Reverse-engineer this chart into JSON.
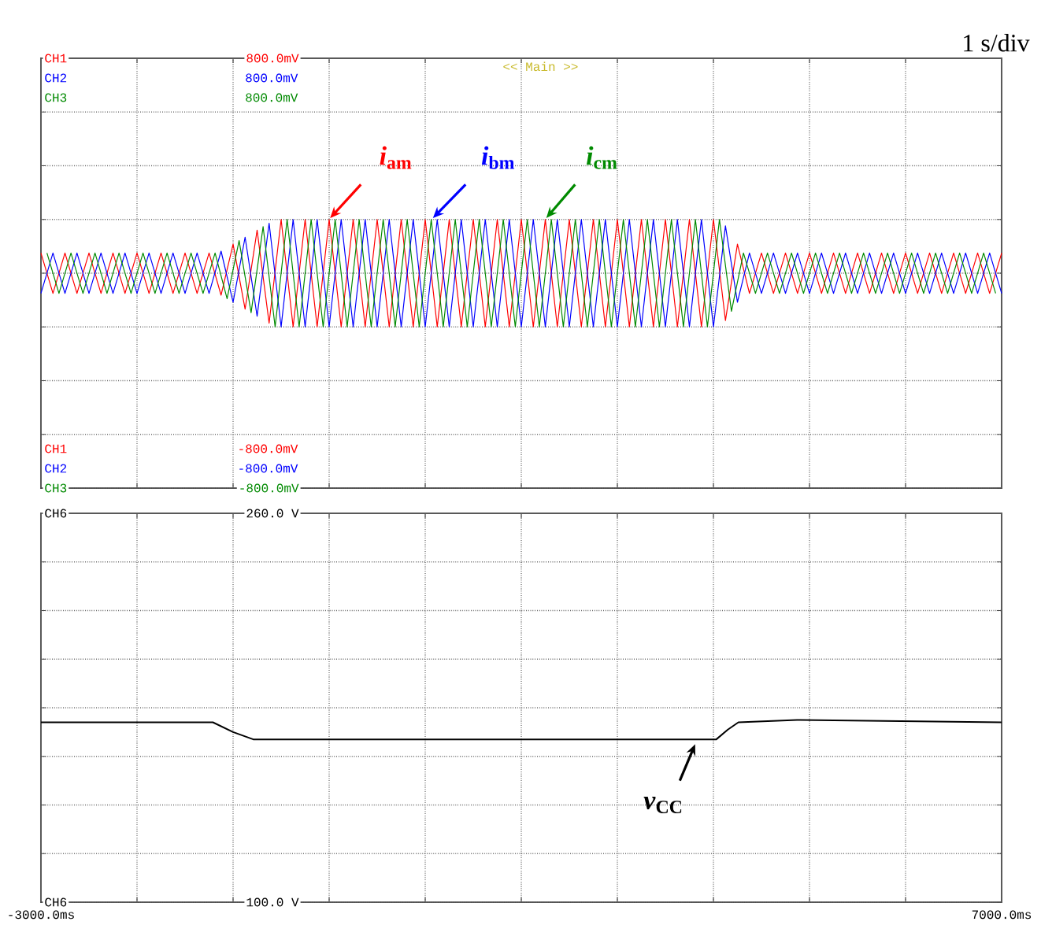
{
  "chart_data": [
    {
      "type": "line",
      "x": [
        -3000,
        -2875,
        -2750,
        -2625,
        -2500,
        -2375,
        -2250,
        -2125,
        -2000,
        -1875,
        -1750,
        -1625,
        -1500,
        -1375,
        -1250,
        -1125,
        -1000,
        -875,
        -750,
        -625,
        -500,
        -375,
        -250,
        -125,
        0,
        125,
        250,
        375,
        500,
        625,
        750,
        875,
        1000,
        1125,
        1250,
        1375,
        1500,
        1625,
        1750,
        1875,
        2000,
        2125,
        2250,
        2375,
        2500,
        2625,
        2750,
        2875,
        3000,
        3125,
        3250,
        3375,
        3500,
        3625,
        3750,
        3875,
        4000,
        4125,
        4250,
        4375,
        4500,
        4625,
        4750,
        4875,
        5000,
        5125,
        5250,
        5375,
        5500,
        5625,
        5750,
        5875,
        6000,
        6125,
        6250,
        6375,
        6500,
        6625,
        6750,
        6875,
        7000
      ],
      "series": [
        {
          "name": "*i*$_{am}$",
          "color": "#ff0000",
          "values": [
            75,
            -75,
            75,
            -75,
            75,
            -75,
            75,
            -75,
            75,
            -75,
            75,
            -75,
            75,
            -75,
            75,
            -82,
            108,
            -134,
            160,
            -186,
            200,
            -200,
            200,
            -200,
            200,
            -200,
            200,
            -200,
            200,
            -200,
            200,
            -200,
            200,
            -200,
            200,
            -200,
            200,
            -200,
            200,
            -200,
            200,
            -200,
            200,
            -200,
            200,
            -200,
            200,
            -200,
            200,
            -200,
            200,
            -200,
            200,
            -200,
            200,
            -200,
            200,
            -176,
            108,
            -75,
            75,
            -75,
            75,
            -75,
            75,
            -75,
            75,
            -75,
            75,
            -75,
            75,
            -75,
            75,
            -75,
            75,
            -75,
            75,
            -75,
            75,
            -75,
            75
          ]
        },
        {
          "name": "*i*$_{bm}$",
          "color": "#0000ff",
          "values": [
            -75,
            75,
            -75,
            75,
            -75,
            75,
            -75,
            75,
            -75,
            75,
            -75,
            75,
            -75,
            75,
            -75,
            82,
            -108,
            134,
            -160,
            186,
            -200,
            200,
            -200,
            200,
            -200,
            200,
            -200,
            200,
            -200,
            200,
            -200,
            200,
            -200,
            200,
            -200,
            200,
            -200,
            200,
            -200,
            200,
            -200,
            200,
            -200,
            200,
            -200,
            200,
            -200,
            200,
            -200,
            200,
            -200,
            200,
            -200,
            200,
            -200,
            200,
            -200,
            176,
            -108,
            75,
            -75,
            75,
            -75,
            75,
            -75,
            75,
            -75,
            75,
            -75,
            75,
            -75,
            75,
            -75,
            75,
            -75,
            75,
            -75,
            75,
            -75,
            75,
            -75
          ]
        },
        {
          "name": "*i*$_{cm}$",
          "color": "#008a00",
          "x": [
            -2937.5,
            -2812.5,
            -2687.5,
            -2562.5,
            -2437.5,
            -2312.5,
            -2187.5,
            -2062.5,
            -1937.5,
            -1812.5,
            -1687.5,
            -1562.5,
            -1437.5,
            -1312.5,
            -1187.5,
            -1062.5,
            -937.5,
            -812.5,
            -687.5,
            -562.5,
            -437.5,
            -312.5,
            -187.5,
            -62.5,
            62.5,
            187.5,
            312.5,
            437.5,
            562.5,
            687.5,
            812.5,
            937.5,
            1062.5,
            1187.5,
            1312.5,
            1437.5,
            1562.5,
            1687.5,
            1812.5,
            1937.5,
            2062.5,
            2187.5,
            2312.5,
            2437.5,
            2562.5,
            2687.5,
            2812.5,
            2937.5,
            3062.5,
            3187.5,
            3312.5,
            3437.5,
            3562.5,
            3687.5,
            3812.5,
            3937.5,
            4062.5,
            4187.5,
            4312.5,
            4437.5,
            4562.5,
            4687.5,
            4812.5,
            4937.5,
            5062.5,
            5187.5,
            5312.5,
            5437.5,
            5562.5,
            5687.5,
            5812.5,
            5937.5,
            6062.5,
            6187.5,
            6312.5,
            6437.5,
            6562.5,
            6687.5,
            6812.5,
            6937.5
          ],
          "values": [
            75,
            -75,
            75,
            -75,
            75,
            -75,
            75,
            -75,
            75,
            -75,
            75,
            -75,
            75,
            -75,
            75,
            -95,
            121,
            -147,
            173,
            -200,
            200,
            -200,
            200,
            -200,
            200,
            -200,
            200,
            -200,
            200,
            -200,
            200,
            -200,
            200,
            -200,
            200,
            -200,
            200,
            -200,
            200,
            -200,
            200,
            -200,
            200,
            -200,
            200,
            -200,
            200,
            -200,
            200,
            -200,
            200,
            -200,
            200,
            -200,
            200,
            -200,
            200,
            -142,
            75,
            -75,
            75,
            -75,
            75,
            -75,
            75,
            -75,
            75,
            -75,
            75,
            -75,
            75,
            -75,
            75,
            -75,
            75,
            -75,
            75,
            -75,
            75,
            -75
          ]
        }
      ],
      "xlim": [
        -3000,
        7000
      ],
      "ylim": [
        -800,
        800
      ],
      "xticks": [
        {
          "value": -3000,
          "label": null
        },
        {
          "value": -2000,
          "label": null
        },
        {
          "value": -1000,
          "label": null
        },
        {
          "value": 0,
          "label": null
        },
        {
          "value": 1000,
          "label": null
        },
        {
          "value": 2000,
          "label": null
        },
        {
          "value": 3000,
          "label": null
        },
        {
          "value": 4000,
          "label": null
        },
        {
          "value": 5000,
          "label": null
        },
        {
          "value": 6000,
          "label": null
        },
        {
          "value": 7000,
          "label": null
        }
      ],
      "yticks": [
        {
          "value": 800,
          "label": "800.0mV"
        },
        {
          "value": 600,
          "label": null
        },
        {
          "value": 400,
          "label": null
        },
        {
          "value": 200,
          "label": null
        },
        {
          "value": 0,
          "label": null
        },
        {
          "value": -200,
          "label": null
        },
        {
          "value": -400,
          "label": null
        },
        {
          "value": -600,
          "label": null
        },
        {
          "value": -800,
          "label": "-800.0mV"
        }
      ],
      "grid": true,
      "tick_labels": "y",
      "annotations": [
        "CH1",
        "CH2 800.0mV",
        "CH3 800.0mV",
        "CH1 -800.0mV",
        "CH2 -800.0mV",
        "CH3",
        "<< Main >>",
        "1 s/div"
      ]
    },
    {
      "type": "line",
      "x": [
        -3000,
        -1210,
        -1000,
        -790,
        4030,
        4150,
        4260,
        4870,
        7000
      ],
      "series": [
        {
          "name": "*v*$_{CC}$",
          "color": "#000000",
          "values": [
            174,
            174,
            170,
            167,
            167,
            171,
            174,
            175,
            174
          ]
        }
      ],
      "xlim": [
        -3000,
        7000
      ],
      "ylim": [
        100,
        260
      ],
      "xticks": [
        {
          "value": -3000,
          "label": "-3000.0ms"
        },
        {
          "value": -2000,
          "label": null
        },
        {
          "value": -1000,
          "label": null
        },
        {
          "value": 0,
          "label": null
        },
        {
          "value": 1000,
          "label": null
        },
        {
          "value": 2000,
          "label": null
        },
        {
          "value": 3000,
          "label": null
        },
        {
          "value": 4000,
          "label": null
        },
        {
          "value": 5000,
          "label": null
        },
        {
          "value": 6000,
          "label": null
        },
        {
          "value": 7000,
          "label": "7000.0ms"
        }
      ],
      "yticks": [
        {
          "value": 260,
          "label": "260.0 V"
        },
        {
          "value": 240,
          "label": null
        },
        {
          "value": 220,
          "label": null
        },
        {
          "value": 200,
          "label": null
        },
        {
          "value": 180,
          "label": null
        },
        {
          "value": 160,
          "label": null
        },
        {
          "value": 140,
          "label": null
        },
        {
          "value": 120,
          "label": null
        },
        {
          "value": 100,
          "label": "100.0 V"
        }
      ],
      "grid": true,
      "annotations": [
        "CH6",
        "CH6"
      ]
    }
  ]
}
